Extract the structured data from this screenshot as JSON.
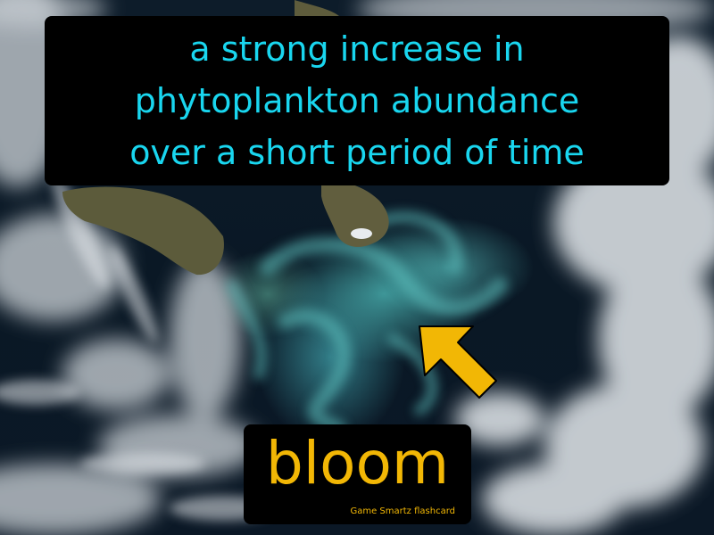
{
  "definition": {
    "lines": [
      "a strong increase in",
      "phytoplankton abundance",
      "over a short period of time"
    ]
  },
  "term": "bloom",
  "brand": "Game Smartz flashcard",
  "colors": {
    "definition_text": "#19d6ef",
    "term_text": "#f2b705",
    "box_background": "#000000",
    "arrow": "#f2b705",
    "ocean": "#0b1826",
    "bloom_water": "#46aaaa",
    "land": "#5b5b3a",
    "cloud": "#d9dde0"
  },
  "icons": {
    "pointer": "arrow-icon"
  }
}
